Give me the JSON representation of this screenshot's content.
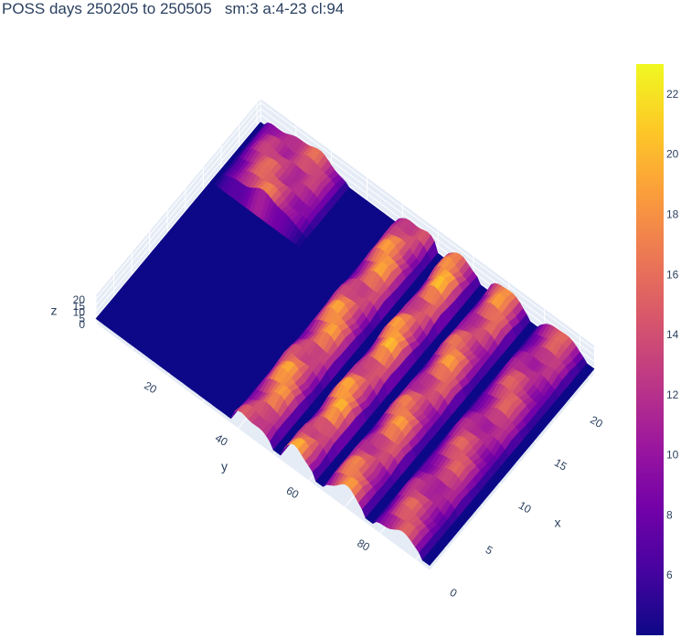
{
  "chart_data": {
    "type": "surface",
    "title": "POSS days 250205 to 250505   sm:3 a:4-23 cl:94",
    "x_label": "x",
    "y_label": "y",
    "z_label": "z",
    "x_range": [
      0,
      23
    ],
    "y_range": [
      0,
      94
    ],
    "z_range": [
      0,
      23
    ],
    "x_ticks": [
      "0",
      "5",
      "10",
      "15",
      "20"
    ],
    "y_ticks": [
      "20",
      "40",
      "60",
      "80"
    ],
    "z_ticks": [
      "0",
      "5",
      "10",
      "15",
      "20"
    ],
    "colorscale": "plasma",
    "colorbar_ticks": [
      "6",
      "8",
      "10",
      "12",
      "14",
      "16",
      "18",
      "20",
      "22"
    ],
    "colorbar_range": [
      4,
      23
    ],
    "grid": true,
    "colorbar_position": "right",
    "ridge_groups": [
      {
        "y_from": 1,
        "y_to": 25,
        "peak_z": 18,
        "x_from": 17,
        "x_to": 23
      },
      {
        "y_from": 38,
        "y_to": 50,
        "peak_z": 21,
        "x_from": 0,
        "x_to": 23
      },
      {
        "y_from": 52,
        "y_to": 62,
        "peak_z": 22,
        "x_from": 0,
        "x_to": 23
      },
      {
        "y_from": 64,
        "y_to": 76,
        "peak_z": 20,
        "x_from": 0,
        "x_to": 23
      },
      {
        "y_from": 78,
        "y_to": 92,
        "peak_z": 17,
        "x_from": 0,
        "x_to": 23
      }
    ]
  }
}
